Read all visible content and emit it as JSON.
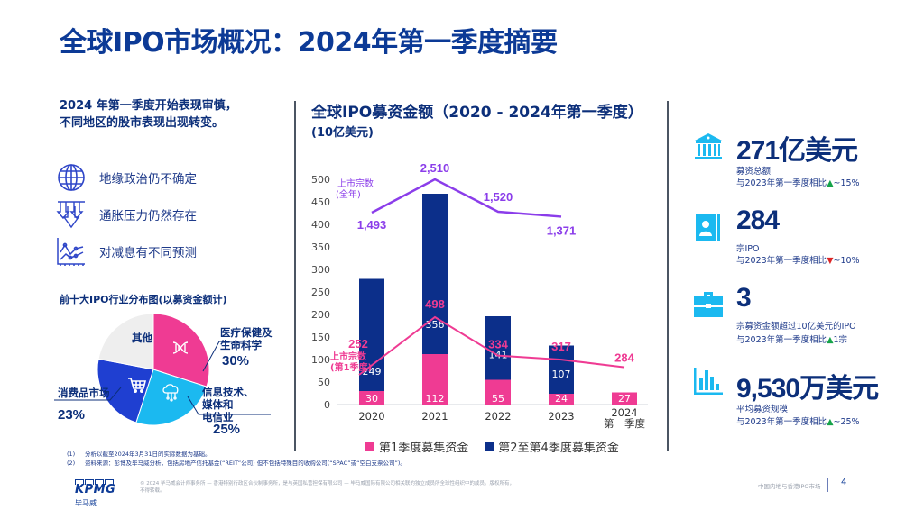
{
  "page": {
    "title": "全球IPO市场概况：2024年第一季度摘要",
    "page_number": "4",
    "footer_title": "中国内地与香港IPO市场"
  },
  "left": {
    "intro_line1": "2024 年第一季度开始表现审慎，",
    "intro_line2": "不同地区的股市表现出现转变。",
    "factors": [
      {
        "icon": "globe-icon",
        "label": "地缘政治仍不确定"
      },
      {
        "icon": "down-arrows-icon",
        "label": "通胀压力仍然存在"
      },
      {
        "icon": "line-chart-icon",
        "label": "对减息有不同预测"
      }
    ],
    "pie": {
      "title": "前十大IPO行业分布图(以募资金额计)",
      "slices": [
        {
          "label": "医疗保健及生命科学",
          "label_line1": "医疗保健及",
          "label_line2": "生命科学",
          "pct": "30%",
          "value": 30,
          "color": "#ef3b93",
          "icon": "dna-icon"
        },
        {
          "label": "信息技术、媒体和电信业",
          "label_line1": "信息技术、",
          "label_line2": "媒体和",
          "label_line3": "电信业",
          "pct": "25%",
          "value": 25,
          "color": "#1bb9f0",
          "icon": "cloud-network-icon"
        },
        {
          "label": "消费品市场",
          "pct": "23%",
          "value": 23,
          "color": "#1f3fd1",
          "icon": "shopping-cart-icon"
        },
        {
          "label": "其他",
          "pct": "",
          "value": 22,
          "color": "#eeeeee",
          "icon": ""
        }
      ]
    }
  },
  "chart_data": {
    "type": "bar",
    "title": "全球IPO募资金额（2020 - 2024年第一季度）",
    "subtitle": "(10亿美元)",
    "xlabel": "",
    "ylabel": "",
    "ylim": [
      0,
      500
    ],
    "yticks": [
      0,
      50,
      100,
      150,
      200,
      250,
      300,
      350,
      400,
      450,
      500
    ],
    "grid": false,
    "legend_position": "bottom",
    "categories": [
      "2020",
      "2021",
      "2022",
      "2023",
      "2024 第一季度"
    ],
    "category_lines": [
      [
        "2020"
      ],
      [
        "2021"
      ],
      [
        "2022"
      ],
      [
        "2023"
      ],
      [
        "2024",
        "第一季度"
      ]
    ],
    "stacked": true,
    "series": [
      {
        "name": "第1季度募集资金",
        "color": "#ef3b93",
        "values": [
          30,
          112,
          55,
          24,
          27
        ]
      },
      {
        "name": "第2至第4季度募集资金",
        "color": "#0c2f8a",
        "values": [
          249,
          356,
          141,
          107,
          null
        ]
      }
    ],
    "lines": [
      {
        "name": "上市宗数(全年)",
        "label_line1": "上市宗数",
        "label_line2": "(全年)",
        "color": "#8b3dea",
        "axis": "secondary",
        "values": [
          1493,
          2510,
          1520,
          1371,
          null
        ],
        "labels": [
          "1,493",
          "2,510",
          "1,520",
          "1,371",
          ""
        ]
      },
      {
        "name": "上市宗数(第1季度)",
        "label_line1": "上市宗数",
        "label_line2": "(第1季度)",
        "color": "#ef3b93",
        "axis": "secondary",
        "values": [
          252,
          498,
          334,
          317,
          284
        ],
        "labels": [
          "252",
          "498",
          "334",
          "317",
          "284"
        ]
      }
    ]
  },
  "kpis": [
    {
      "icon": "bank-icon",
      "value": "271亿美元",
      "line1": "募资总额",
      "line2_prefix": "与2023年第一季度相比",
      "trend": "up",
      "trend_symbol": "▲",
      "line2_suffix": "~15%"
    },
    {
      "icon": "contact-book-icon",
      "value": "284",
      "line1": "宗IPO",
      "line2_prefix": "与2023年第一季度相比",
      "trend": "down",
      "trend_symbol": "▼",
      "line2_suffix": "~10%"
    },
    {
      "icon": "briefcase-icon",
      "value": "3",
      "line1": "宗募资金额超过10亿美元的IPO",
      "line2_prefix": "与2023年第一季度相比",
      "trend": "up",
      "trend_symbol": "▲",
      "line2_suffix": "1宗"
    },
    {
      "icon": "bar-chart-icon",
      "value": "9,530万美元",
      "line1": "平均募资规模",
      "line2_prefix": "与2023年第一季度相比",
      "trend": "up",
      "trend_symbol": "▲",
      "line2_suffix": "~25%"
    }
  ],
  "footer": {
    "notes": [
      {
        "num": "(1)",
        "text": "分析以截至2024年3月31日的实际数据为基础。"
      },
      {
        "num": "(2)",
        "text": "资料来源：彭博及毕马威分析，包括房地产信托基金(“REIT”公司) 但不包括特殊目的收购公司(“SPAC”或“空白支票公司”)。"
      }
    ],
    "logo_text": "KPMG",
    "logo_cn": "毕马威",
    "copyright": "© 2024 毕马威会计师事务所 — 香港特别行政区合伙制事务所，是与英国私营担保有限公司 — 毕马威国际有限公司相关联的独立成员所全球性组织中的成员。版权所有，不得转载。"
  }
}
